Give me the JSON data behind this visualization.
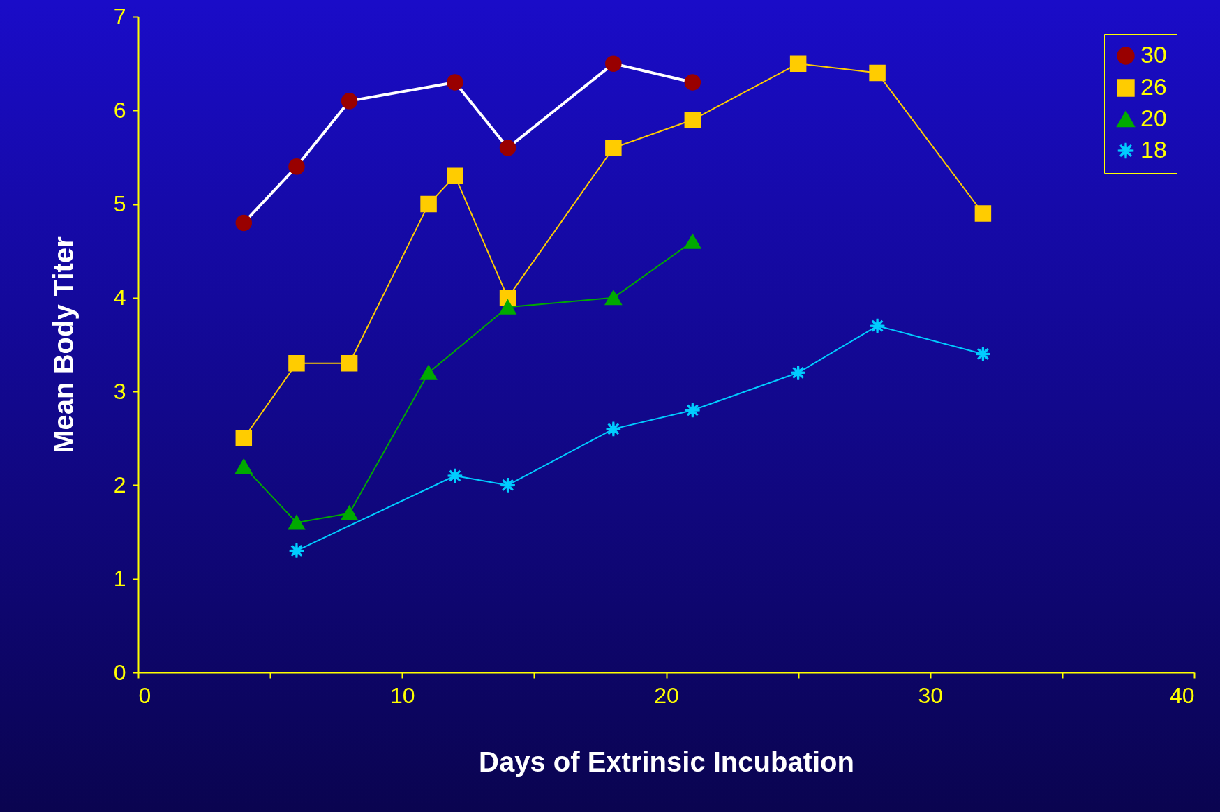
{
  "chart_data": {
    "type": "line",
    "xlabel": "Days of Extrinsic Incubation",
    "ylabel": "Mean Body Titer",
    "xlim": [
      0,
      40
    ],
    "xticks": [
      0,
      {
        "value": 5,
        "label": null
      },
      10,
      {
        "value": 15,
        "label": null
      },
      20,
      {
        "value": 25,
        "label": null
      },
      30,
      {
        "value": 35,
        "label": null
      },
      40
    ],
    "ylim": [
      0,
      7
    ],
    "yticks": [
      0,
      1,
      2,
      3,
      4,
      5,
      6,
      7
    ],
    "grid": false,
    "legend": "top right",
    "series": [
      {
        "name": "30",
        "color": "#990000",
        "marker": "circle",
        "x": [
          4,
          6,
          8,
          12,
          14,
          18,
          21
        ],
        "values": [
          4.8,
          5.4,
          6.1,
          6.3,
          5.6,
          6.5,
          6.3
        ]
      },
      {
        "name": "26",
        "color": "#ffcc00",
        "marker": "square",
        "x": [
          4,
          6,
          8,
          11,
          12,
          14,
          18,
          21,
          25,
          28,
          32
        ],
        "values": [
          2.5,
          3.3,
          3.3,
          5.0,
          5.3,
          4.0,
          5.6,
          5.9,
          6.5,
          6.4,
          4.9
        ]
      },
      {
        "name": "20",
        "color": "#00aa00",
        "marker": "triangle",
        "x": [
          4,
          6,
          8,
          11,
          14,
          18,
          21
        ],
        "values": [
          2.2,
          1.6,
          1.7,
          3.2,
          3.9,
          4.0,
          4.6
        ]
      },
      {
        "name": "18",
        "color": "#00ccff",
        "marker": "cross",
        "x": [
          6,
          12,
          14,
          18,
          21,
          25,
          28,
          32
        ],
        "values": [
          1.3,
          2.1,
          2.0,
          2.6,
          2.8,
          3.2,
          3.7,
          3.4
        ]
      }
    ]
  }
}
